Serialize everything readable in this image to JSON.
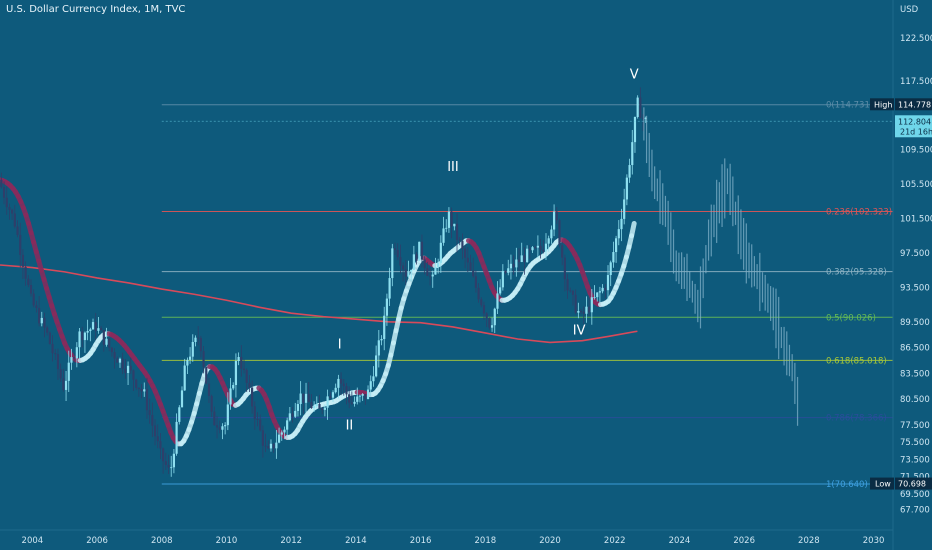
{
  "header": {
    "title": "U.S. Dollar Currency Index, 1M, TVC"
  },
  "axis": {
    "currency_label": "USD"
  },
  "badges": {
    "high_label": "High",
    "high_value": "114.778",
    "low_label": "Low",
    "low_value": "70.698",
    "last_value": "112.804",
    "countdown": "21d 16h"
  },
  "chart_data": {
    "type": "line",
    "title": "U.S. Dollar Currency Index, 1M, TVC",
    "xlabel": "",
    "ylabel": "",
    "xlim": [
      2003.0,
      2030.6
    ],
    "ylim": [
      65.3,
      126.9
    ],
    "y_ticks": [
      67.7,
      69.5,
      71.5,
      73.5,
      75.5,
      77.5,
      80.5,
      83.5,
      86.5,
      89.5,
      93.5,
      97.5,
      101.5,
      105.5,
      109.5,
      117.5,
      122.5
    ],
    "y_tick_labels": [
      "67.700",
      "69.500",
      "71.500",
      "73.500",
      "75.500",
      "77.500",
      "80.500",
      "83.500",
      "86.500",
      "89.500",
      "93.500",
      "97.500",
      "101.500",
      "105.500",
      "109.500",
      "117.500",
      "122.500"
    ],
    "x_ticks": [
      2004,
      2006,
      2008,
      2010,
      2012,
      2014,
      2016,
      2018,
      2020,
      2022,
      2024,
      2026,
      2028,
      2030
    ],
    "fib_levels": [
      {
        "label": "0(114.731)",
        "value": 114.731,
        "color": "#5d8da8"
      },
      {
        "label": "0.236(102.323)",
        "value": 102.323,
        "color": "#e05555"
      },
      {
        "label": "0.382(95.328)",
        "value": 95.328,
        "color": "#8fb3c4"
      },
      {
        "label": "0.5(90.026)",
        "value": 90.026,
        "color": "#66bb55"
      },
      {
        "label": "0.618(85.018)",
        "value": 85.018,
        "color": "#a8c838"
      },
      {
        "label": "0.786(78.366)",
        "value": 78.366,
        "color": "#2a4d9a"
      },
      {
        "label": "1(70.640)",
        "value": 70.64,
        "color": "#3fa0e0"
      }
    ],
    "waves": [
      {
        "label": "I",
        "x": 2013.5,
        "y": 86.4
      },
      {
        "label": "II",
        "x": 2013.8,
        "y": 77.0
      },
      {
        "label": "III",
        "x": 2017.0,
        "y": 107.0
      },
      {
        "label": "IV",
        "x": 2020.9,
        "y": 88.0
      },
      {
        "label": "V",
        "x": 2022.6,
        "y": 117.8
      }
    ],
    "series": [
      {
        "color": "#c8eef7",
        "values": [
          [
            2003.0,
            106
          ],
          [
            2003.5,
            101
          ],
          [
            2004.0,
            92
          ],
          [
            2004.5,
            88
          ],
          [
            2005.0,
            82
          ],
          [
            2005.5,
            88
          ],
          [
            2006.0,
            89
          ],
          [
            2006.5,
            86
          ],
          [
            2007.0,
            84
          ],
          [
            2007.5,
            81
          ],
          [
            2008.0,
            74
          ],
          [
            2008.3,
            71.8
          ],
          [
            2008.8,
            85
          ],
          [
            2009.2,
            88
          ],
          [
            2009.6,
            78
          ],
          [
            2010.0,
            77.5
          ],
          [
            2010.4,
            86
          ],
          [
            2010.9,
            79
          ],
          [
            2011.3,
            74
          ],
          [
            2011.8,
            77
          ],
          [
            2012.3,
            81
          ],
          [
            2012.9,
            79
          ],
          [
            2013.5,
            83
          ],
          [
            2013.9,
            80
          ],
          [
            2014.4,
            81
          ],
          [
            2014.9,
            89
          ],
          [
            2015.2,
            99
          ],
          [
            2015.6,
            95
          ],
          [
            2016.0,
            98
          ],
          [
            2016.4,
            94
          ],
          [
            2016.9,
            102
          ],
          [
            2017.5,
            96
          ],
          [
            2017.9,
            92
          ],
          [
            2018.2,
            89
          ],
          [
            2018.6,
            95
          ],
          [
            2019.2,
            97
          ],
          [
            2019.8,
            98
          ],
          [
            2020.2,
            102
          ],
          [
            2020.6,
            93
          ],
          [
            2021.0,
            90
          ],
          [
            2021.4,
            92
          ],
          [
            2021.8,
            94
          ],
          [
            2022.3,
            103
          ],
          [
            2022.75,
            114.8
          ],
          [
            2022.95,
            112.8
          ]
        ]
      },
      {
        "color": "#d84a5a",
        "values": [
          [
            2003.0,
            96.1
          ],
          [
            2004.0,
            95.8
          ],
          [
            2005.0,
            95.3
          ],
          [
            2006.0,
            94.6
          ],
          [
            2007.0,
            94.0
          ],
          [
            2008.0,
            93.3
          ],
          [
            2009.0,
            92.7
          ],
          [
            2010.0,
            92.0
          ],
          [
            2011.0,
            91.2
          ],
          [
            2012.0,
            90.5
          ],
          [
            2013.0,
            90.1
          ],
          [
            2014.0,
            89.8
          ],
          [
            2015.0,
            89.5
          ],
          [
            2016.0,
            89.4
          ],
          [
            2017.0,
            88.9
          ],
          [
            2018.0,
            88.2
          ],
          [
            2019.0,
            87.5
          ],
          [
            2020.0,
            87.1
          ],
          [
            2021.0,
            87.3
          ],
          [
            2021.8,
            87.8
          ],
          [
            2022.7,
            88.4
          ]
        ]
      }
    ],
    "projection": {
      "color": "#7fb0c8",
      "values": [
        [
          2022.9,
          112.5
        ],
        [
          2023.2,
          106
        ],
        [
          2023.6,
          102
        ],
        [
          2023.9,
          96
        ],
        [
          2024.2,
          95
        ],
        [
          2024.6,
          91
        ],
        [
          2024.9,
          99
        ],
        [
          2025.2,
          103
        ],
        [
          2025.5,
          106
        ],
        [
          2025.8,
          101
        ],
        [
          2026.1,
          97
        ],
        [
          2026.5,
          94
        ],
        [
          2026.9,
          91
        ],
        [
          2027.2,
          87
        ],
        [
          2027.5,
          84
        ],
        [
          2027.7,
          79
        ]
      ]
    },
    "gridlines": false,
    "legend": "none"
  },
  "colors": {
    "background": "#0e5a7c",
    "candle_up": "#8fe0f0",
    "candle_down": "#2e3f6a",
    "ribbon_bull": "#c8f0f8",
    "ribbon_bear": "#8a2a5c"
  }
}
